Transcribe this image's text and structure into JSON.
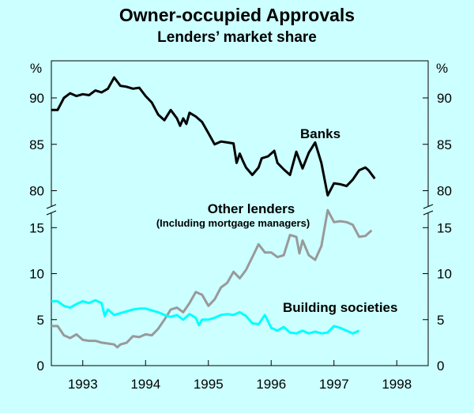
{
  "chart_data": {
    "type": "line",
    "title": "Owner-occupied Approvals",
    "subtitle": "Lenders’ market share",
    "unit_label_left": "%",
    "unit_label_right": "%",
    "x_ticks": [
      "1993",
      "1994",
      "1995",
      "1996",
      "1997",
      "1998"
    ],
    "xlim": [
      1992.5,
      1998.5
    ],
    "upper_panel": {
      "ylim": [
        78,
        94
      ],
      "y_ticks": [
        "80",
        "85",
        "90"
      ],
      "tick_values": [
        80,
        85,
        90
      ],
      "series": [
        {
          "name": "Banks",
          "label": "Banks",
          "color": "#000000",
          "values": [
            [
              1992.5,
              88.7
            ],
            [
              1992.6,
              88.7
            ],
            [
              1992.7,
              90.0
            ],
            [
              1992.8,
              90.5
            ],
            [
              1992.9,
              90.2
            ],
            [
              1993.0,
              90.4
            ],
            [
              1993.1,
              90.3
            ],
            [
              1993.2,
              90.8
            ],
            [
              1993.3,
              90.6
            ],
            [
              1993.4,
              91.0
            ],
            [
              1993.5,
              92.2
            ],
            [
              1993.6,
              91.3
            ],
            [
              1993.7,
              91.2
            ],
            [
              1993.8,
              91.0
            ],
            [
              1993.9,
              91.1
            ],
            [
              1994.0,
              90.2
            ],
            [
              1994.1,
              89.5
            ],
            [
              1994.2,
              88.2
            ],
            [
              1994.3,
              87.6
            ],
            [
              1994.4,
              88.7
            ],
            [
              1994.5,
              87.8
            ],
            [
              1994.55,
              87.0
            ],
            [
              1994.6,
              87.8
            ],
            [
              1994.65,
              87.2
            ],
            [
              1994.7,
              88.4
            ],
            [
              1994.8,
              88.0
            ],
            [
              1994.9,
              87.4
            ],
            [
              1995.0,
              86.2
            ],
            [
              1995.1,
              85.0
            ],
            [
              1995.2,
              85.3
            ],
            [
              1995.3,
              85.2
            ],
            [
              1995.4,
              85.1
            ],
            [
              1995.45,
              83.0
            ],
            [
              1995.5,
              84.0
            ],
            [
              1995.55,
              83.2
            ],
            [
              1995.6,
              82.5
            ],
            [
              1995.7,
              81.7
            ],
            [
              1995.8,
              82.5
            ],
            [
              1995.85,
              83.5
            ],
            [
              1995.95,
              83.7
            ],
            [
              1996.05,
              84.3
            ],
            [
              1996.1,
              83.0
            ],
            [
              1996.2,
              82.3
            ],
            [
              1996.3,
              81.7
            ],
            [
              1996.4,
              84.2
            ],
            [
              1996.5,
              82.4
            ],
            [
              1996.6,
              84.1
            ],
            [
              1996.7,
              85.2
            ],
            [
              1996.8,
              83.0
            ],
            [
              1996.9,
              79.5
            ],
            [
              1997.0,
              80.8
            ],
            [
              1997.1,
              80.7
            ],
            [
              1997.2,
              80.5
            ],
            [
              1997.3,
              81.2
            ],
            [
              1997.4,
              82.2
            ],
            [
              1997.5,
              82.5
            ],
            [
              1997.55,
              82.2
            ],
            [
              1997.65,
              81.3
            ]
          ]
        }
      ]
    },
    "lower_panel": {
      "ylim": [
        0,
        17
      ],
      "y_ticks": [
        "0",
        "5",
        "10",
        "15"
      ],
      "tick_values": [
        0,
        5,
        10,
        15
      ],
      "series": [
        {
          "name": "Other lenders",
          "label": "Other lenders",
          "sublabel": "(Including mortgage managers)",
          "color": "#999999",
          "values": [
            [
              1992.5,
              4.3
            ],
            [
              1992.6,
              4.3
            ],
            [
              1992.7,
              3.3
            ],
            [
              1992.8,
              3.0
            ],
            [
              1992.9,
              3.4
            ],
            [
              1993.0,
              2.8
            ],
            [
              1993.1,
              2.7
            ],
            [
              1993.2,
              2.7
            ],
            [
              1993.3,
              2.5
            ],
            [
              1993.4,
              2.4
            ],
            [
              1993.5,
              2.3
            ],
            [
              1993.55,
              2.0
            ],
            [
              1993.6,
              2.3
            ],
            [
              1993.7,
              2.5
            ],
            [
              1993.8,
              3.2
            ],
            [
              1993.9,
              3.1
            ],
            [
              1994.0,
              3.4
            ],
            [
              1994.1,
              3.3
            ],
            [
              1994.2,
              4.0
            ],
            [
              1994.3,
              5.0
            ],
            [
              1994.4,
              6.1
            ],
            [
              1994.5,
              6.3
            ],
            [
              1994.6,
              5.8
            ],
            [
              1994.7,
              6.8
            ],
            [
              1994.8,
              8.0
            ],
            [
              1994.9,
              7.7
            ],
            [
              1995.0,
              6.5
            ],
            [
              1995.1,
              7.2
            ],
            [
              1995.2,
              8.5
            ],
            [
              1995.3,
              9.0
            ],
            [
              1995.4,
              10.2
            ],
            [
              1995.5,
              9.5
            ],
            [
              1995.6,
              10.4
            ],
            [
              1995.7,
              11.8
            ],
            [
              1995.8,
              13.2
            ],
            [
              1995.9,
              12.3
            ],
            [
              1996.0,
              12.3
            ],
            [
              1996.1,
              11.8
            ],
            [
              1996.2,
              12.0
            ],
            [
              1996.3,
              14.2
            ],
            [
              1996.4,
              14.0
            ],
            [
              1996.45,
              12.2
            ],
            [
              1996.5,
              13.6
            ],
            [
              1996.6,
              12.0
            ],
            [
              1996.7,
              11.5
            ],
            [
              1996.8,
              13.0
            ],
            [
              1996.9,
              16.9
            ],
            [
              1997.0,
              15.6
            ],
            [
              1997.1,
              15.7
            ],
            [
              1997.2,
              15.6
            ],
            [
              1997.3,
              15.3
            ],
            [
              1997.4,
              14.0
            ],
            [
              1997.5,
              14.1
            ],
            [
              1997.6,
              14.7
            ]
          ]
        },
        {
          "name": "Building societies",
          "label": "Building societies",
          "color": "#00ffff",
          "values": [
            [
              1992.5,
              7.0
            ],
            [
              1992.6,
              7.0
            ],
            [
              1992.7,
              6.5
            ],
            [
              1992.8,
              6.3
            ],
            [
              1992.9,
              6.7
            ],
            [
              1993.0,
              7.0
            ],
            [
              1993.1,
              6.8
            ],
            [
              1993.2,
              7.1
            ],
            [
              1993.3,
              6.8
            ],
            [
              1993.35,
              5.4
            ],
            [
              1993.4,
              6.1
            ],
            [
              1993.5,
              5.5
            ],
            [
              1993.6,
              5.7
            ],
            [
              1993.7,
              5.9
            ],
            [
              1993.8,
              6.1
            ],
            [
              1993.9,
              6.2
            ],
            [
              1994.0,
              6.2
            ],
            [
              1994.1,
              6.0
            ],
            [
              1994.2,
              5.8
            ],
            [
              1994.3,
              5.5
            ],
            [
              1994.4,
              5.3
            ],
            [
              1994.5,
              5.5
            ],
            [
              1994.6,
              5.0
            ],
            [
              1994.7,
              5.6
            ],
            [
              1994.8,
              5.2
            ],
            [
              1994.85,
              4.4
            ],
            [
              1994.9,
              5.0
            ],
            [
              1995.0,
              5.0
            ],
            [
              1995.1,
              5.2
            ],
            [
              1995.2,
              5.5
            ],
            [
              1995.3,
              5.6
            ],
            [
              1995.4,
              5.5
            ],
            [
              1995.5,
              5.8
            ],
            [
              1995.6,
              5.4
            ],
            [
              1995.7,
              4.6
            ],
            [
              1995.8,
              4.5
            ],
            [
              1995.9,
              5.5
            ],
            [
              1996.0,
              4.1
            ],
            [
              1996.1,
              3.8
            ],
            [
              1996.2,
              4.2
            ],
            [
              1996.3,
              3.6
            ],
            [
              1996.4,
              3.5
            ],
            [
              1996.5,
              3.8
            ],
            [
              1996.6,
              3.5
            ],
            [
              1996.7,
              3.7
            ],
            [
              1996.8,
              3.5
            ],
            [
              1996.9,
              3.6
            ],
            [
              1997.0,
              4.3
            ],
            [
              1997.1,
              4.1
            ],
            [
              1997.2,
              3.8
            ],
            [
              1997.3,
              3.5
            ],
            [
              1997.4,
              3.8
            ]
          ]
        }
      ]
    }
  }
}
